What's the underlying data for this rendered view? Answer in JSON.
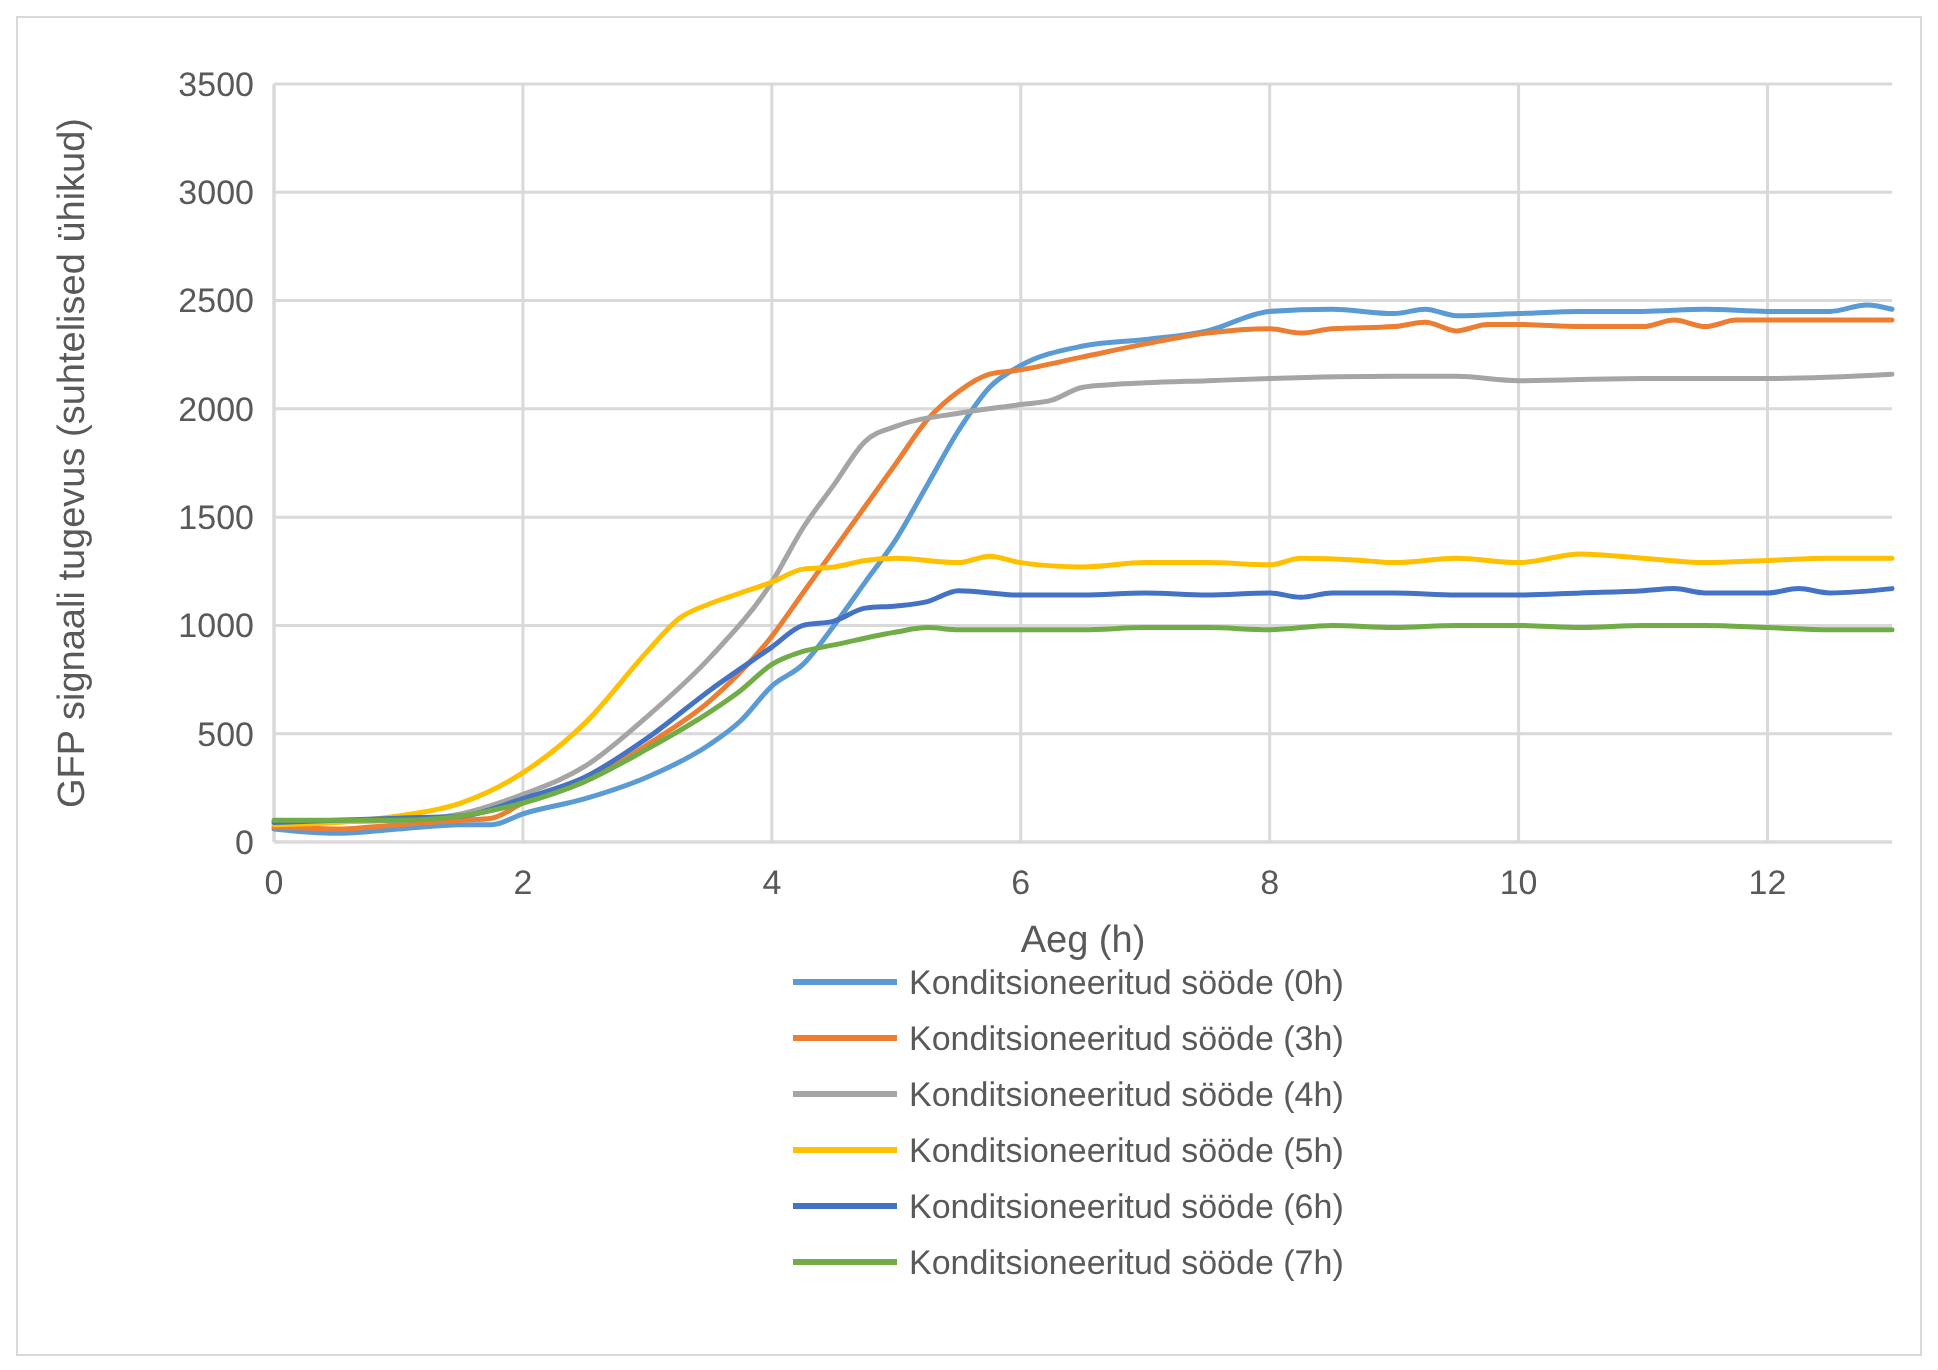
{
  "chart_data": {
    "type": "line",
    "xlabel": "Aeg (h)",
    "ylabel": "GFP signaali tugevus (suhtelised ühikud)",
    "xlim": [
      0,
      13
    ],
    "xticks": [
      0,
      2,
      4,
      6,
      8,
      10,
      12
    ],
    "ylim": [
      0,
      3500
    ],
    "yticks": [
      0,
      500,
      1000,
      1500,
      2000,
      2500,
      3000,
      3500
    ],
    "grid": true,
    "legend": "bottom",
    "marker": "none",
    "line_style": "solid",
    "series": [
      {
        "name": "Konditsioneeritud sööde (0h)",
        "color": "#5b9bd5",
        "x": [
          0,
          0.5,
          1,
          1.5,
          1.75,
          2,
          2.5,
          3,
          3.5,
          3.75,
          4,
          4.25,
          4.5,
          4.75,
          5,
          5.25,
          5.5,
          5.75,
          6,
          6.5,
          7,
          7.5,
          8,
          8.5,
          9,
          9.25,
          9.5,
          10,
          10.5,
          11,
          11.5,
          12,
          12.5,
          12.8,
          13
        ],
        "values": [
          60,
          40,
          60,
          80,
          80,
          130,
          200,
          300,
          450,
          560,
          720,
          820,
          1000,
          1200,
          1400,
          1650,
          1900,
          2100,
          2200,
          2290,
          2320,
          2360,
          2450,
          2460,
          2440,
          2460,
          2430,
          2440,
          2450,
          2450,
          2460,
          2450,
          2450,
          2480,
          2460
        ]
      },
      {
        "name": "Konditsioneeritud sööde (3h)",
        "color": "#ed7d31",
        "x": [
          0,
          0.5,
          1,
          1.5,
          1.75,
          2,
          2.5,
          3,
          3.5,
          4,
          4.25,
          4.5,
          4.75,
          5,
          5.25,
          5.5,
          5.75,
          6,
          6.5,
          7,
          7.5,
          8,
          8.25,
          8.5,
          9,
          9.25,
          9.5,
          9.75,
          10,
          10.5,
          11,
          11.25,
          11.5,
          11.75,
          12,
          13
        ],
        "values": [
          70,
          60,
          80,
          100,
          110,
          180,
          280,
          450,
          650,
          950,
          1150,
          1350,
          1550,
          1750,
          1950,
          2080,
          2160,
          2180,
          2240,
          2300,
          2350,
          2370,
          2350,
          2370,
          2380,
          2400,
          2360,
          2390,
          2390,
          2380,
          2380,
          2410,
          2380,
          2410,
          2410,
          2410
        ]
      },
      {
        "name": "Konditsioneeritud sööde (4h)",
        "color": "#a5a5a5",
        "x": [
          0,
          1,
          1.5,
          2,
          2.5,
          3,
          3.5,
          4,
          4.25,
          4.5,
          4.75,
          5,
          5.5,
          6,
          6.25,
          6.5,
          7,
          7.5,
          8,
          9,
          9.5,
          10,
          11,
          12,
          13
        ],
        "values": [
          90,
          100,
          130,
          220,
          350,
          580,
          850,
          1200,
          1450,
          1650,
          1850,
          1920,
          1980,
          2020,
          2040,
          2100,
          2120,
          2130,
          2140,
          2150,
          2150,
          2130,
          2140,
          2140,
          2160
        ]
      },
      {
        "name": "Konditsioneeritud sööde (5h)",
        "color": "#ffc000",
        "x": [
          0,
          0.5,
          1,
          1.5,
          2,
          2.5,
          3,
          3.25,
          3.5,
          3.75,
          4,
          4.25,
          4.5,
          4.75,
          5,
          5.5,
          5.75,
          6,
          6.5,
          7,
          7.5,
          8,
          8.25,
          8.75,
          9,
          9.5,
          10,
          10.5,
          11,
          11.5,
          12,
          12.5,
          13
        ],
        "values": [
          80,
          90,
          120,
          180,
          320,
          550,
          880,
          1030,
          1100,
          1150,
          1200,
          1260,
          1270,
          1300,
          1310,
          1290,
          1320,
          1290,
          1270,
          1290,
          1290,
          1280,
          1310,
          1300,
          1290,
          1310,
          1290,
          1330,
          1310,
          1290,
          1300,
          1310,
          1310
        ]
      },
      {
        "name": "Konditsioneeritud sööde (6h)",
        "color": "#4472c4",
        "x": [
          0,
          1,
          1.5,
          2,
          2.5,
          3,
          3.5,
          4,
          4.25,
          4.5,
          4.75,
          5,
          5.25,
          5.5,
          6,
          6.5,
          7,
          7.5,
          8,
          8.25,
          8.5,
          9,
          9.5,
          10,
          10.5,
          11,
          11.25,
          11.5,
          12,
          12.25,
          12.5,
          13
        ],
        "values": [
          90,
          110,
          120,
          200,
          300,
          480,
          700,
          900,
          1000,
          1020,
          1080,
          1090,
          1110,
          1160,
          1140,
          1140,
          1150,
          1140,
          1150,
          1130,
          1150,
          1150,
          1140,
          1140,
          1150,
          1160,
          1170,
          1150,
          1150,
          1170,
          1150,
          1170
        ]
      },
      {
        "name": "Konditsioneeritud sööde (7h)",
        "color": "#70ad47",
        "x": [
          0,
          1,
          1.5,
          2,
          2.5,
          3,
          3.5,
          3.75,
          4,
          4.25,
          4.5,
          5,
          5.25,
          5.5,
          6,
          6.5,
          7,
          7.5,
          8,
          8.5,
          9,
          9.5,
          10,
          10.5,
          11,
          11.5,
          12,
          12.5,
          13
        ],
        "values": [
          100,
          100,
          120,
          180,
          280,
          430,
          600,
          700,
          820,
          880,
          910,
          970,
          990,
          980,
          980,
          980,
          990,
          990,
          980,
          1000,
          990,
          1000,
          1000,
          990,
          1000,
          1000,
          990,
          980,
          980
        ]
      }
    ]
  }
}
